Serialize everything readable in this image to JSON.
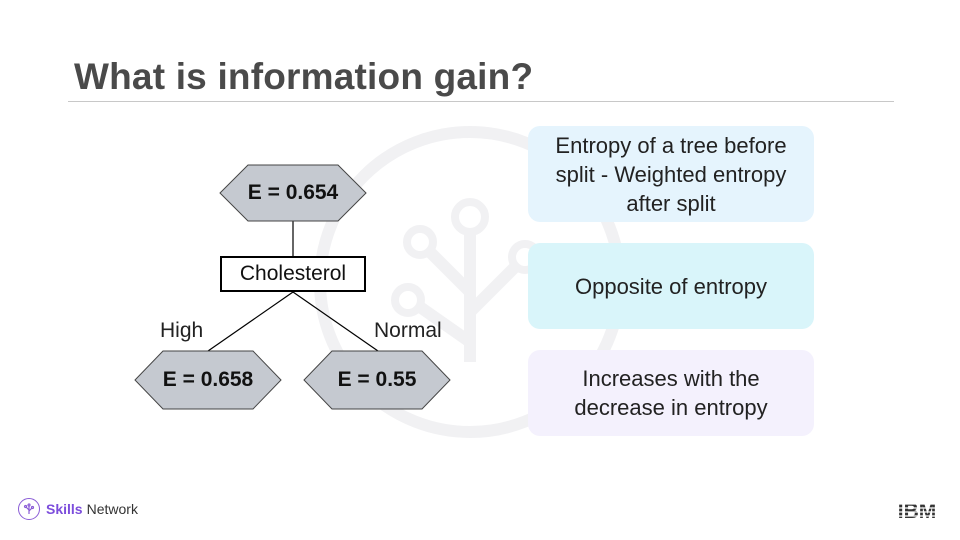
{
  "title": "What is information gain?",
  "tree": {
    "root_entropy": "E = 0.654",
    "split_node": "Cholesterol",
    "branch_left_label": "High",
    "branch_right_label": "Normal",
    "left_entropy": "E = 0.658",
    "right_entropy": "E = 0.55"
  },
  "cards": [
    {
      "text": "Entropy of a tree before split - Weighted entropy after split",
      "color": "#e5f4fd"
    },
    {
      "text": "Opposite of entropy",
      "color": "#d9f5fa"
    },
    {
      "text": "Increases with the decrease in entropy",
      "color": "#f4f1fd"
    }
  ],
  "footer": {
    "brand_strong": "Skills",
    "brand_rest": "Network",
    "logo": "IBM"
  },
  "colors": {
    "hexagon_fill": "#c5c9d0",
    "brand_purple": "#7c4ddc"
  }
}
